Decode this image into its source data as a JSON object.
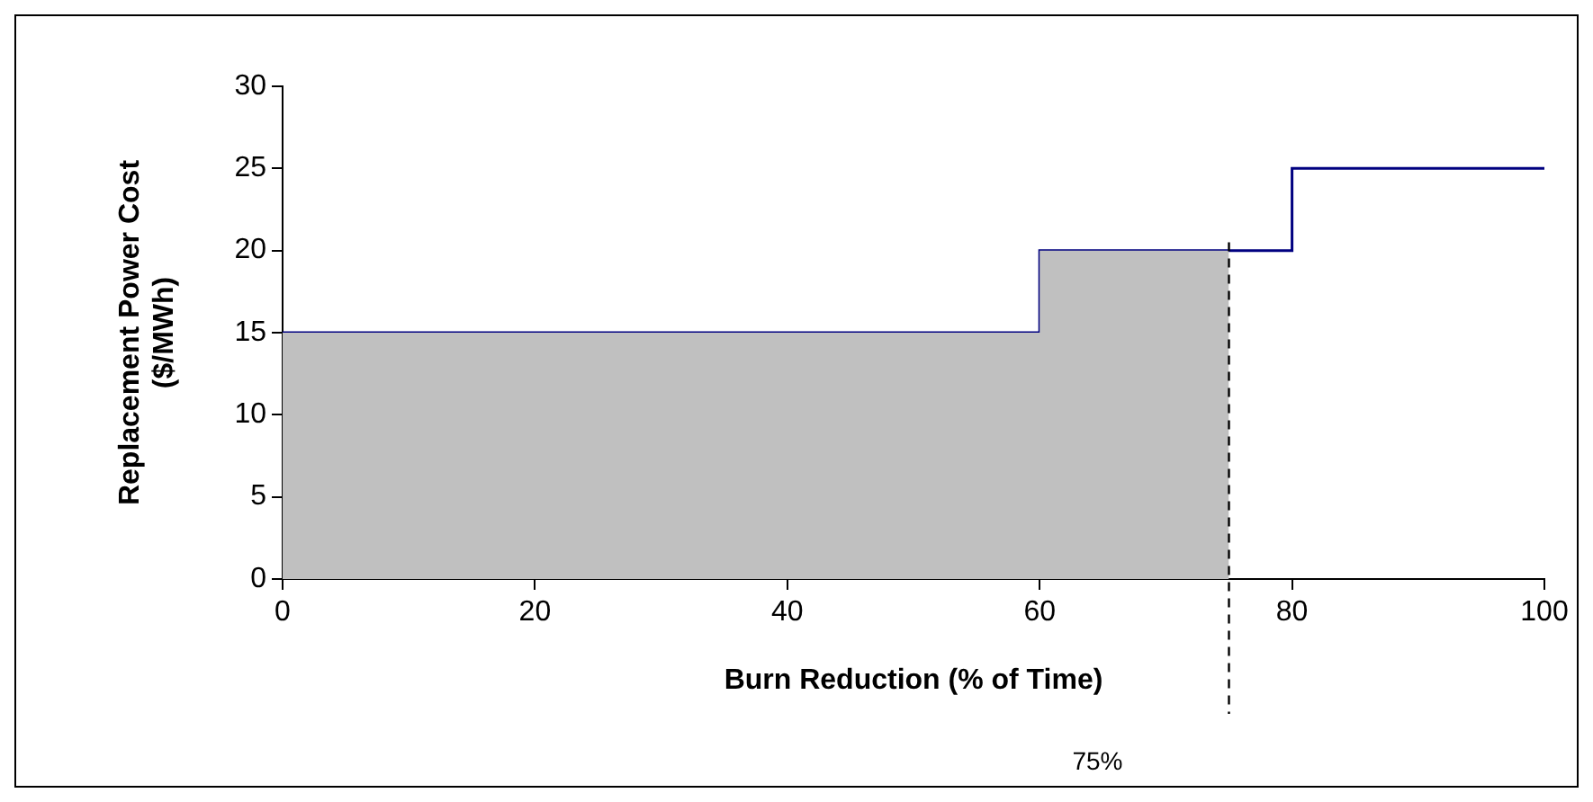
{
  "chart_data": {
    "type": "step",
    "xlabel": "Burn Reduction (% of Time)",
    "ylabel": "Replacement Power Cost\n($/MWh)",
    "xlim": [
      0,
      100
    ],
    "xticks": [
      0,
      20,
      40,
      60,
      80,
      100
    ],
    "ylim": [
      0,
      30
    ],
    "yticks": [
      0,
      5,
      10,
      15,
      20,
      25,
      30
    ],
    "grid": false,
    "legend": false,
    "series": [
      {
        "type": "area",
        "color": "#c0c0c0",
        "x": [
          0,
          60,
          75
        ],
        "values": [
          15,
          20,
          20
        ]
      },
      {
        "type": "step",
        "color": "#000080",
        "x": [
          0,
          60,
          80,
          100
        ],
        "values": [
          15,
          20,
          25,
          25
        ]
      }
    ],
    "ref_lines": [
      {
        "axis": "x",
        "value": 75,
        "label": "75%",
        "color": "#000000",
        "line_style": "dashed"
      }
    ]
  }
}
